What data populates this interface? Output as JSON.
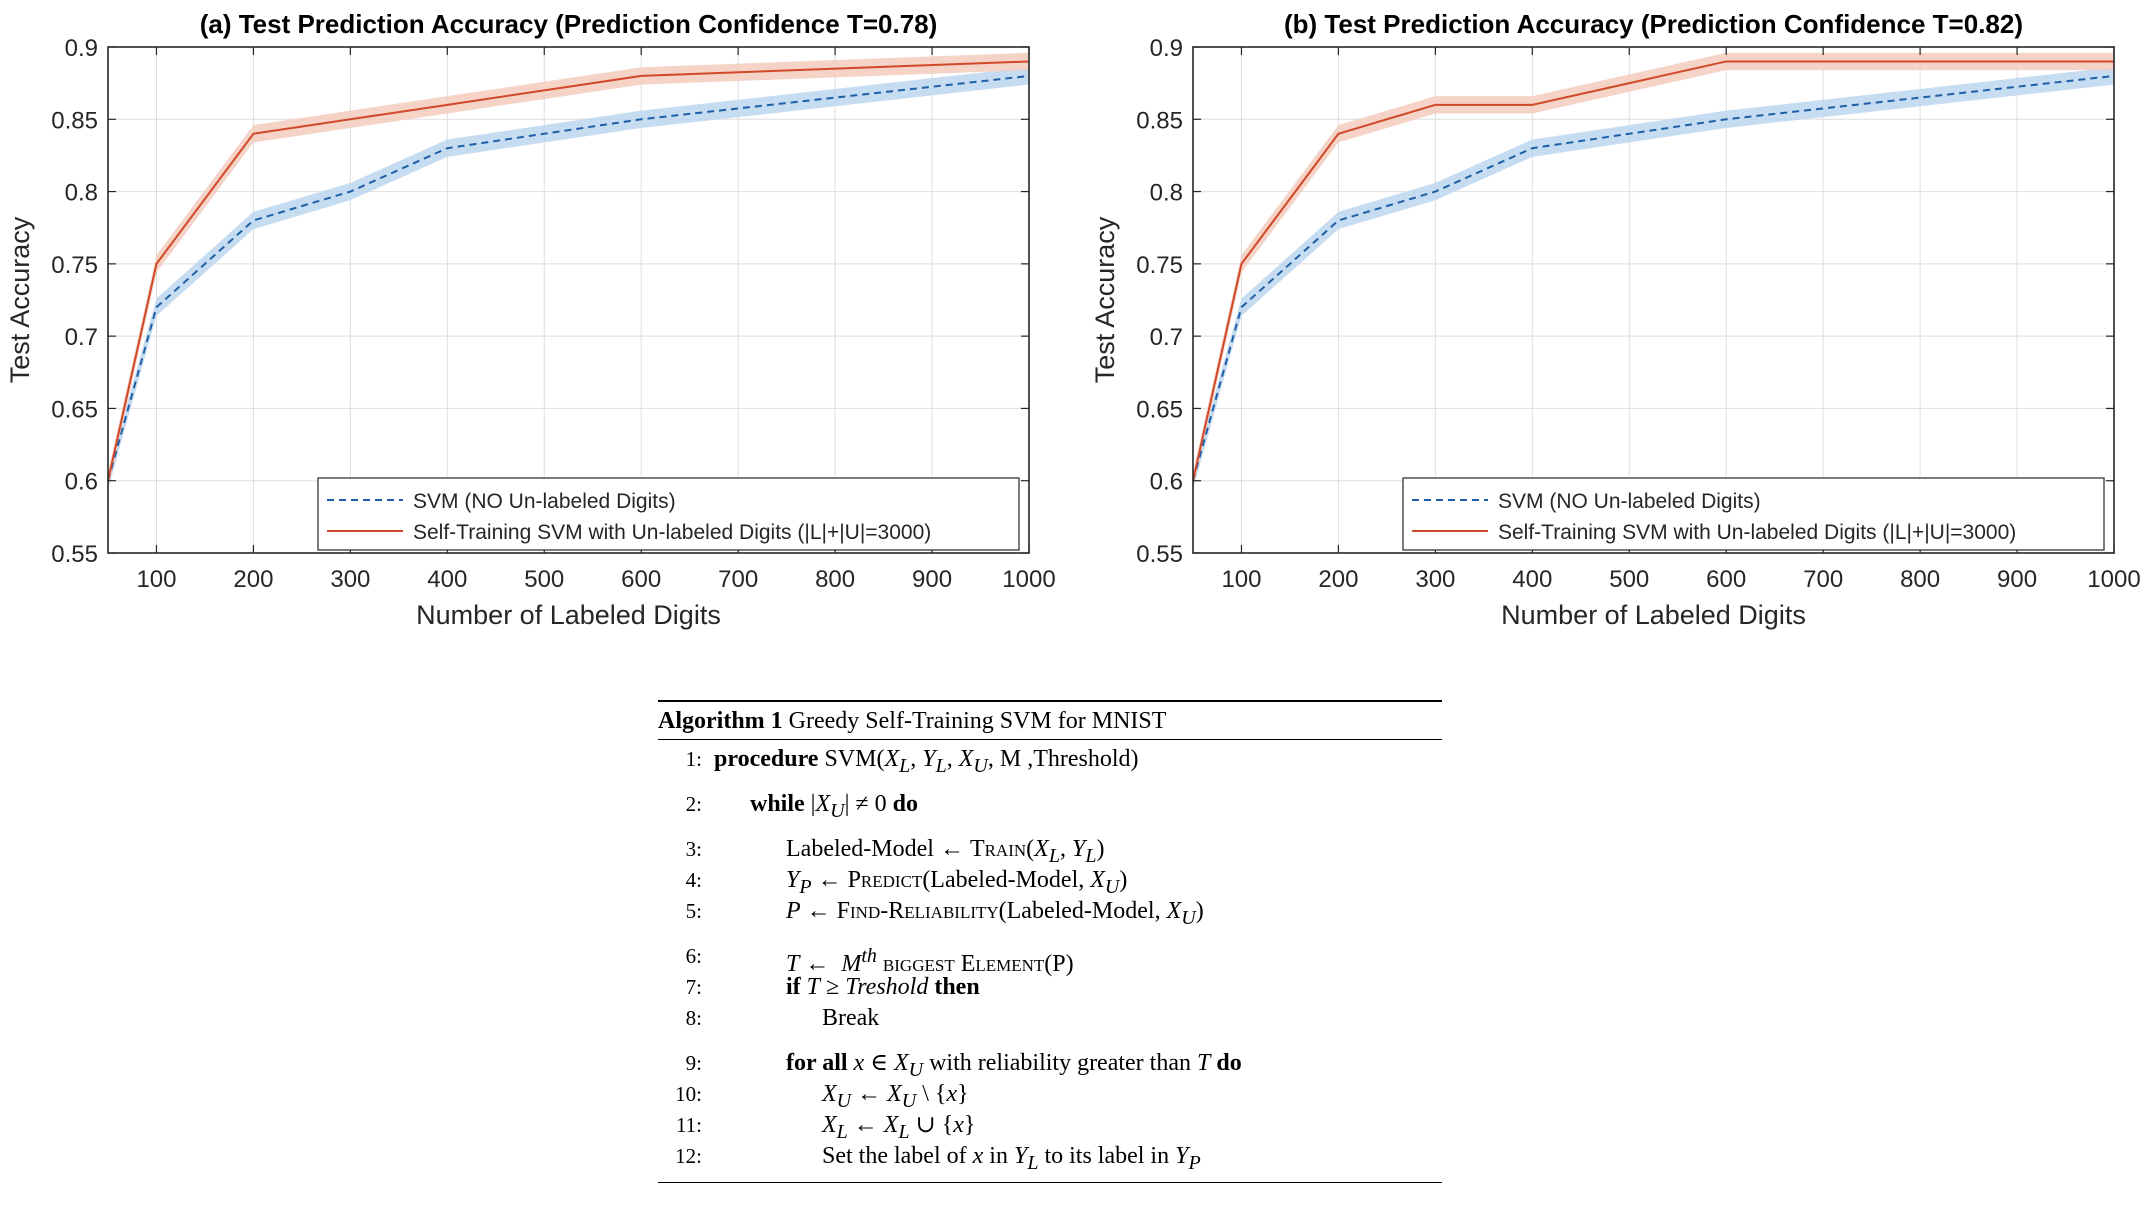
{
  "chart_data": [
    {
      "type": "line",
      "title": "(a) Test Prediction Accuracy (Prediction Confidence T=0.78)",
      "xlabel": "Number of Labeled Digits",
      "ylabel": "Test Accuracy",
      "xlim": [
        50,
        1000
      ],
      "ylim": [
        0.55,
        0.9
      ],
      "xticks": [
        100,
        200,
        300,
        400,
        500,
        600,
        700,
        800,
        900,
        1000
      ],
      "yticks": [
        0.55,
        0.6,
        0.65,
        0.7,
        0.75,
        0.8,
        0.85,
        0.9
      ],
      "xtick_labels": [
        "100",
        "200",
        "300",
        "400",
        "500",
        "600",
        "700",
        "800",
        "900",
        "1000"
      ],
      "ytick_labels": [
        "0.55",
        "0.6",
        "0.65",
        "0.7",
        "0.75",
        "0.8",
        "0.85",
        "0.9"
      ],
      "grid": true,
      "legend_position": "bottom-right",
      "x": [
        50,
        100,
        200,
        300,
        400,
        600,
        1000
      ],
      "series": [
        {
          "name": "SVM (NO Un-labeled Digits)",
          "values": [
            0.6,
            0.72,
            0.78,
            0.8,
            0.83,
            0.85,
            0.88
          ],
          "band": 0.006,
          "color": "#1f5fa8",
          "band_color": "#bcd6ee",
          "style": "dashed"
        },
        {
          "name": "Self-Training SVM with Un-labeled Digits (|L|+|U|=3000)",
          "values": [
            0.6,
            0.75,
            0.84,
            0.85,
            0.86,
            0.88,
            0.89
          ],
          "band": 0.006,
          "color": "#d04a2a",
          "band_color": "#f3cbbd",
          "style": "solid"
        }
      ]
    },
    {
      "type": "line",
      "title": "(b) Test Prediction Accuracy (Prediction Confidence T=0.82)",
      "xlabel": "Number of Labeled Digits",
      "ylabel": "Test Accuracy",
      "xlim": [
        50,
        1000
      ],
      "ylim": [
        0.55,
        0.9
      ],
      "xticks": [
        100,
        200,
        300,
        400,
        500,
        600,
        700,
        800,
        900,
        1000
      ],
      "yticks": [
        0.55,
        0.6,
        0.65,
        0.7,
        0.75,
        0.8,
        0.85,
        0.9
      ],
      "xtick_labels": [
        "100",
        "200",
        "300",
        "400",
        "500",
        "600",
        "700",
        "800",
        "900",
        "1000"
      ],
      "ytick_labels": [
        "0.55",
        "0.6",
        "0.65",
        "0.7",
        "0.75",
        "0.8",
        "0.85",
        "0.9"
      ],
      "grid": true,
      "legend_position": "bottom-right",
      "x": [
        50,
        100,
        200,
        300,
        400,
        600,
        1000
      ],
      "series": [
        {
          "name": "SVM (NO Un-labeled Digits)",
          "values": [
            0.6,
            0.72,
            0.78,
            0.8,
            0.83,
            0.85,
            0.88
          ],
          "band": 0.006,
          "color": "#1f5fa8",
          "band_color": "#bcd6ee",
          "style": "dashed"
        },
        {
          "name": "Self-Training SVM with Un-labeled Digits (|L|+|U|=3000)",
          "x": [
            50,
            100,
            200,
            300,
            400,
            600,
            1000
          ],
          "values": [
            0.6,
            0.75,
            0.84,
            0.86,
            0.86,
            0.89,
            0.89
          ],
          "band": 0.006,
          "color": "#d04a2a",
          "band_color": "#f3cbbd",
          "style": "solid"
        }
      ]
    }
  ],
  "algorithm": {
    "caption_bold": "Algorithm 1",
    "caption_text": "Greedy Self-Training SVM for MNIST",
    "lines": [
      {
        "num": "1:",
        "html": "<span class=\"kw\">procedure</span> SVM(<i>X<sub>L</sub></i>, <i>Y<sub>L</sub></i>, <i>X<sub>U</sub></i>, M ,Threshold)"
      },
      {
        "num": "2:",
        "html": "      <span class=\"kw\">while</span> |<i>X<sub>U</sub></i>| ≠ 0 <span class=\"kw\">do</span>"
      },
      {
        "num": "3:",
        "html": "            Labeled-Model ← <span class=\"sc\">Train</span>(<i>X<sub>L</sub></i>, <i>Y<sub>L</sub></i>)"
      },
      {
        "num": "4:",
        "html": "            <i>Y<sub>P</sub></i> ← <span class=\"sc\">Predict</span>(Labeled-Model, <i>X<sub>U</sub></i>)"
      },
      {
        "num": "5:",
        "html": "            <i>P</i> ← <span class=\"sc\">Find-Reliability</span>(Labeled-Model, <i>X<sub>U</sub></i>)"
      },
      {
        "num": "6:",
        "html": "            <i>T</i> ←  <i>M<sup>th</sup></i> <span class=\"sc\">biggest Element</span>(P)"
      },
      {
        "num": "7:",
        "html": "            <span class=\"kw\">if</span> <i>T</i> ≥ <i>Treshold</i> <span class=\"kw\">then</span>"
      },
      {
        "num": "8:",
        "html": "                  Break"
      },
      {
        "num": "9:",
        "html": "            <span class=\"kw\">for all</span> <i>x</i> ∈ <i>X<sub>U</sub></i> with reliability greater than <i>T</i> <span class=\"kw\">do</span>"
      },
      {
        "num": "10:",
        "html": "                  <i>X<sub>U</sub></i> ← <i>X<sub>U</sub></i> \\ {<i>x</i>}"
      },
      {
        "num": "11:",
        "html": "                  <i>X<sub>L</sub></i> ← <i>X<sub>L</sub></i> ∪ {<i>x</i>}"
      },
      {
        "num": "12:",
        "html": "                  Set the label of <i>x</i> in <i>Y<sub>L</sub></i> to its label in <i>Y<sub>P</sub></i>"
      }
    ],
    "gap_before": [
      "2:",
      "3:",
      "6:",
      "9:"
    ]
  }
}
